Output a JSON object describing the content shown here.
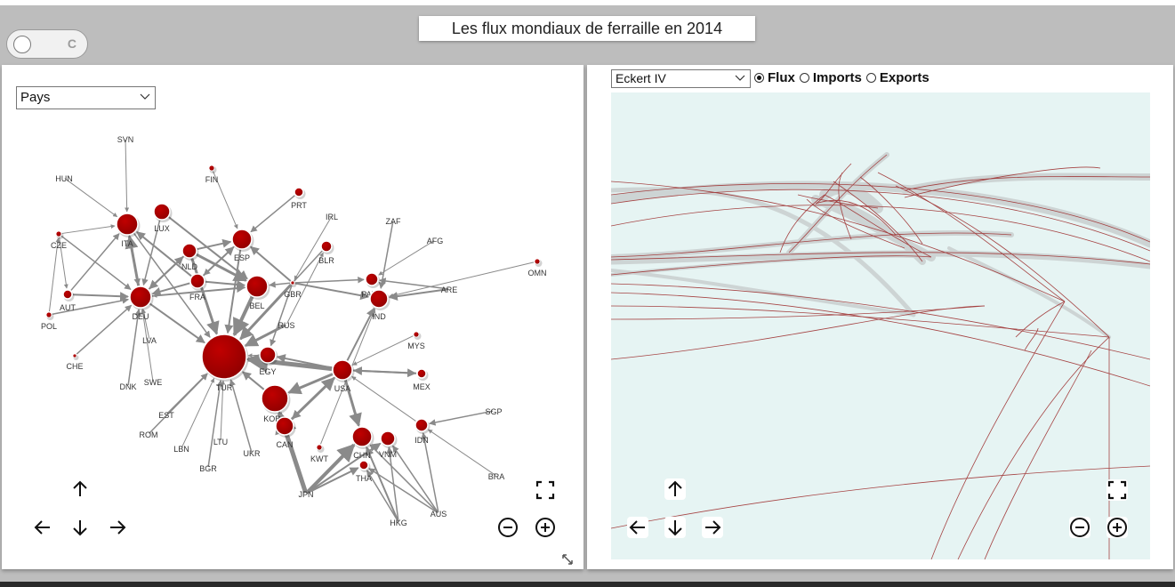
{
  "app": {
    "title": "Les flux mondiaux de ferraille en 2014",
    "toggle_label": "C"
  },
  "graph_panel": {
    "country_select": {
      "selected": "Pays"
    },
    "nodes": [
      {
        "id": "SVN",
        "label": "SVN",
        "r": 0
      },
      {
        "id": "HUN",
        "label": "HUN",
        "r": 0
      },
      {
        "id": "FIN",
        "label": "FIN",
        "r": 3
      },
      {
        "id": "PRT",
        "label": "PRT",
        "r": 5
      },
      {
        "id": "IRL",
        "label": "IRL",
        "r": 0
      },
      {
        "id": "ZAF",
        "label": "ZAF",
        "r": 0
      },
      {
        "id": "AFG",
        "label": "AFG",
        "r": 0
      },
      {
        "id": "CZE",
        "label": "CZE",
        "r": 3
      },
      {
        "id": "ITA",
        "label": "ITA",
        "r": 12
      },
      {
        "id": "LUX",
        "label": "LUX",
        "r": 9
      },
      {
        "id": "NLD",
        "label": "NLD",
        "r": 8
      },
      {
        "id": "ESP",
        "label": "ESP",
        "r": 11
      },
      {
        "id": "BLR",
        "label": "BLR",
        "r": 6
      },
      {
        "id": "OMN",
        "label": "OMN",
        "r": 3
      },
      {
        "id": "AUT",
        "label": "AUT",
        "r": 5
      },
      {
        "id": "DEU",
        "label": "DEU",
        "r": 12
      },
      {
        "id": "FRA",
        "label": "FRA",
        "r": 8
      },
      {
        "id": "BEL",
        "label": "BEL",
        "r": 12
      },
      {
        "id": "GBR",
        "label": "GBR",
        "r": 2
      },
      {
        "id": "POL",
        "label": "POL",
        "r": 3
      },
      {
        "id": "PAK",
        "label": "PAK",
        "r": 7
      },
      {
        "id": "IND",
        "label": "IND",
        "r": 10
      },
      {
        "id": "ARE",
        "label": "ARE",
        "r": 0
      },
      {
        "id": "RUS",
        "label": "RUS",
        "r": 0
      },
      {
        "id": "LVA",
        "label": "LVA",
        "r": 0
      },
      {
        "id": "MYS",
        "label": "MYS",
        "r": 3
      },
      {
        "id": "CHE",
        "label": "CHE",
        "r": 2
      },
      {
        "id": "DNK",
        "label": "DNK",
        "r": 0
      },
      {
        "id": "SWE",
        "label": "SWE",
        "r": 0
      },
      {
        "id": "EGY",
        "label": "EGY",
        "r": 9
      },
      {
        "id": "TUR",
        "label": "TUR",
        "r": 25
      },
      {
        "id": "USA",
        "label": "USA",
        "r": 11
      },
      {
        "id": "MEX",
        "label": "MEX",
        "r": 5
      },
      {
        "id": "KOR",
        "label": "KOR",
        "r": 15
      },
      {
        "id": "EST",
        "label": "EST",
        "r": 0
      },
      {
        "id": "SGP",
        "label": "SGP",
        "r": 0
      },
      {
        "id": "ROM",
        "label": "ROM",
        "r": 0
      },
      {
        "id": "IDN",
        "label": "IDN",
        "r": 7
      },
      {
        "id": "CAN",
        "label": "CAN",
        "r": 10
      },
      {
        "id": "LBN",
        "label": "LBN",
        "r": 0
      },
      {
        "id": "LTU",
        "label": "LTU",
        "r": 0
      },
      {
        "id": "UKR",
        "label": "UKR",
        "r": 0
      },
      {
        "id": "CHN",
        "label": "CHN",
        "r": 11
      },
      {
        "id": "VNM",
        "label": "VNM",
        "r": 8
      },
      {
        "id": "KWT",
        "label": "KWT",
        "r": 3
      },
      {
        "id": "BGR",
        "label": "BGR",
        "r": 0
      },
      {
        "id": "THA",
        "label": "THA",
        "r": 5
      },
      {
        "id": "BRA",
        "label": "BRA",
        "r": 0
      },
      {
        "id": "JPN",
        "label": "JPN",
        "r": 0
      },
      {
        "id": "HKG",
        "label": "HKG",
        "r": 0
      },
      {
        "id": "AUS",
        "label": "AUS",
        "r": 0
      }
    ],
    "edges": [
      [
        "SVN",
        "ITA",
        1
      ],
      [
        "HUN",
        "ITA",
        1
      ],
      [
        "FIN",
        "ESP",
        1
      ],
      [
        "PRT",
        "ESP",
        1.5
      ],
      [
        "IRL",
        "GBR",
        1
      ],
      [
        "ZAF",
        "IND",
        1.5
      ],
      [
        "AFG",
        "PAK",
        1
      ],
      [
        "OMN",
        "IND",
        1
      ],
      [
        "ARE",
        "IND",
        2
      ],
      [
        "ARE",
        "PAK",
        1.5
      ],
      [
        "CZE",
        "DEU",
        1.5
      ],
      [
        "CZE",
        "ITA",
        1
      ],
      [
        "CZE",
        "AUT",
        1
      ],
      [
        "POL",
        "DEU",
        1.5
      ],
      [
        "POL",
        "CZE",
        1
      ],
      [
        "AUT",
        "DEU",
        2
      ],
      [
        "AUT",
        "ITA",
        1.5
      ],
      [
        "CHE",
        "DEU",
        1.5
      ],
      [
        "DNK",
        "DEU",
        1.5
      ],
      [
        "SWE",
        "DEU",
        1
      ],
      [
        "LVA",
        "DEU",
        1
      ],
      [
        "LUX",
        "BEL",
        2
      ],
      [
        "LUX",
        "DEU",
        1.5
      ],
      [
        "NLD",
        "DEU",
        2
      ],
      [
        "NLD",
        "BEL",
        3
      ],
      [
        "NLD",
        "TUR",
        3
      ],
      [
        "NLD",
        "ESP",
        2
      ],
      [
        "FRA",
        "ITA",
        2
      ],
      [
        "FRA",
        "ESP",
        2
      ],
      [
        "FRA",
        "BEL",
        2
      ],
      [
        "FRA",
        "DEU",
        2
      ],
      [
        "DEU",
        "ITA",
        3
      ],
      [
        "DEU",
        "TUR",
        2
      ],
      [
        "DEU",
        "BEL",
        2
      ],
      [
        "DEU",
        "NLD",
        2
      ],
      [
        "BEL",
        "TUR",
        4
      ],
      [
        "BEL",
        "DEU",
        1
      ],
      [
        "ESP",
        "TUR",
        2
      ],
      [
        "GBR",
        "TUR",
        3
      ],
      [
        "GBR",
        "ESP",
        2
      ],
      [
        "GBR",
        "IND",
        2
      ],
      [
        "GBR",
        "PAK",
        1.5
      ],
      [
        "GBR",
        "EGY",
        1.5
      ],
      [
        "GBR",
        "BEL",
        1.5
      ],
      [
        "RUS",
        "TUR",
        3
      ],
      [
        "RUS",
        "BLR",
        1
      ],
      [
        "BLR",
        "TUR",
        1.5
      ],
      [
        "USA",
        "TUR",
        5
      ],
      [
        "USA",
        "CAN",
        2
      ],
      [
        "USA",
        "KOR",
        3
      ],
      [
        "USA",
        "CHN",
        3
      ],
      [
        "USA",
        "EGY",
        2
      ],
      [
        "USA",
        "MEX",
        2
      ],
      [
        "USA",
        "IND",
        2
      ],
      [
        "CAN",
        "USA",
        3
      ],
      [
        "CAN",
        "KOR",
        2
      ],
      [
        "MEX",
        "USA",
        2
      ],
      [
        "EST",
        "TUR",
        1.5
      ],
      [
        "ROM",
        "TUR",
        1.5
      ],
      [
        "LBN",
        "TUR",
        1
      ],
      [
        "LTU",
        "TUR",
        1
      ],
      [
        "UKR",
        "TUR",
        1.5
      ],
      [
        "BGR",
        "TUR",
        1.5
      ],
      [
        "EGY",
        "TUR",
        1
      ],
      [
        "KOR",
        "TUR",
        2
      ],
      [
        "JPN",
        "KOR",
        5
      ],
      [
        "JPN",
        "CHN",
        4
      ],
      [
        "JPN",
        "VNM",
        2
      ],
      [
        "JPN",
        "THA",
        2
      ],
      [
        "KWT",
        "IND",
        1
      ],
      [
        "HKG",
        "CHN",
        2
      ],
      [
        "HKG",
        "VNM",
        1.5
      ],
      [
        "HKG",
        "THA",
        1.5
      ],
      [
        "AUS",
        "IDN",
        1.5
      ],
      [
        "AUS",
        "CHN",
        1.5
      ],
      [
        "AUS",
        "THA",
        1.5
      ],
      [
        "AUS",
        "VNM",
        1.5
      ],
      [
        "SGP",
        "IDN",
        1.5
      ],
      [
        "BRA",
        "IDN",
        1
      ],
      [
        "MYS",
        "USA",
        1
      ],
      [
        "IDN",
        "USA",
        1
      ],
      [
        "ITA",
        "TUR",
        1.5
      ],
      [
        "ITA",
        "DEU",
        1.5
      ],
      [
        "ESP",
        "FRA",
        1.5
      ],
      [
        "TUR",
        "USA",
        1
      ]
    ]
  },
  "map_panel": {
    "projection_select": {
      "selected": "Eckert IV"
    },
    "mode_options": [
      {
        "label": "Flux",
        "checked": true
      },
      {
        "label": "Imports",
        "checked": false
      },
      {
        "label": "Exports",
        "checked": false
      }
    ]
  },
  "colors": {
    "node_fill": "#a60000",
    "edge": "#8a8a8a",
    "map_bg": "#e6f4f3",
    "flow_line": "#9e3030",
    "flow_halo": "#c9cfcf"
  },
  "icons": [
    "arrow-up-icon",
    "arrow-left-icon",
    "arrow-down-icon",
    "arrow-right-icon",
    "fullscreen-icon",
    "zoom-out-icon",
    "zoom-in-icon",
    "resize-icon",
    "chevron-down-icon"
  ]
}
